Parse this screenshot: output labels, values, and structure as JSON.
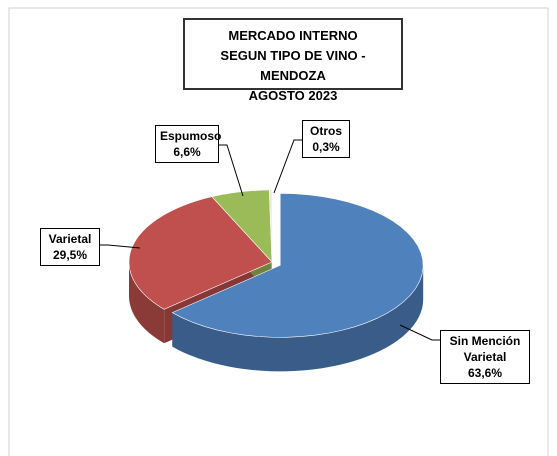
{
  "chart_data": {
    "type": "pie",
    "title": [
      "MERCADO INTERNO",
      "SEGUN TIPO DE VINO - MENDOZA",
      "AGOSTO 2023"
    ],
    "categories": [
      "Sin Mención Varietal",
      "Varietal",
      "Espumoso",
      "Otros"
    ],
    "values": [
      63.6,
      29.5,
      6.6,
      0.3
    ],
    "value_labels": [
      "63,6%",
      "29,5%",
      "6,6%",
      "0,3%"
    ],
    "colors": [
      "#4f81bd",
      "#c0504d",
      "#9bbb59",
      "#e6e6e6"
    ]
  }
}
